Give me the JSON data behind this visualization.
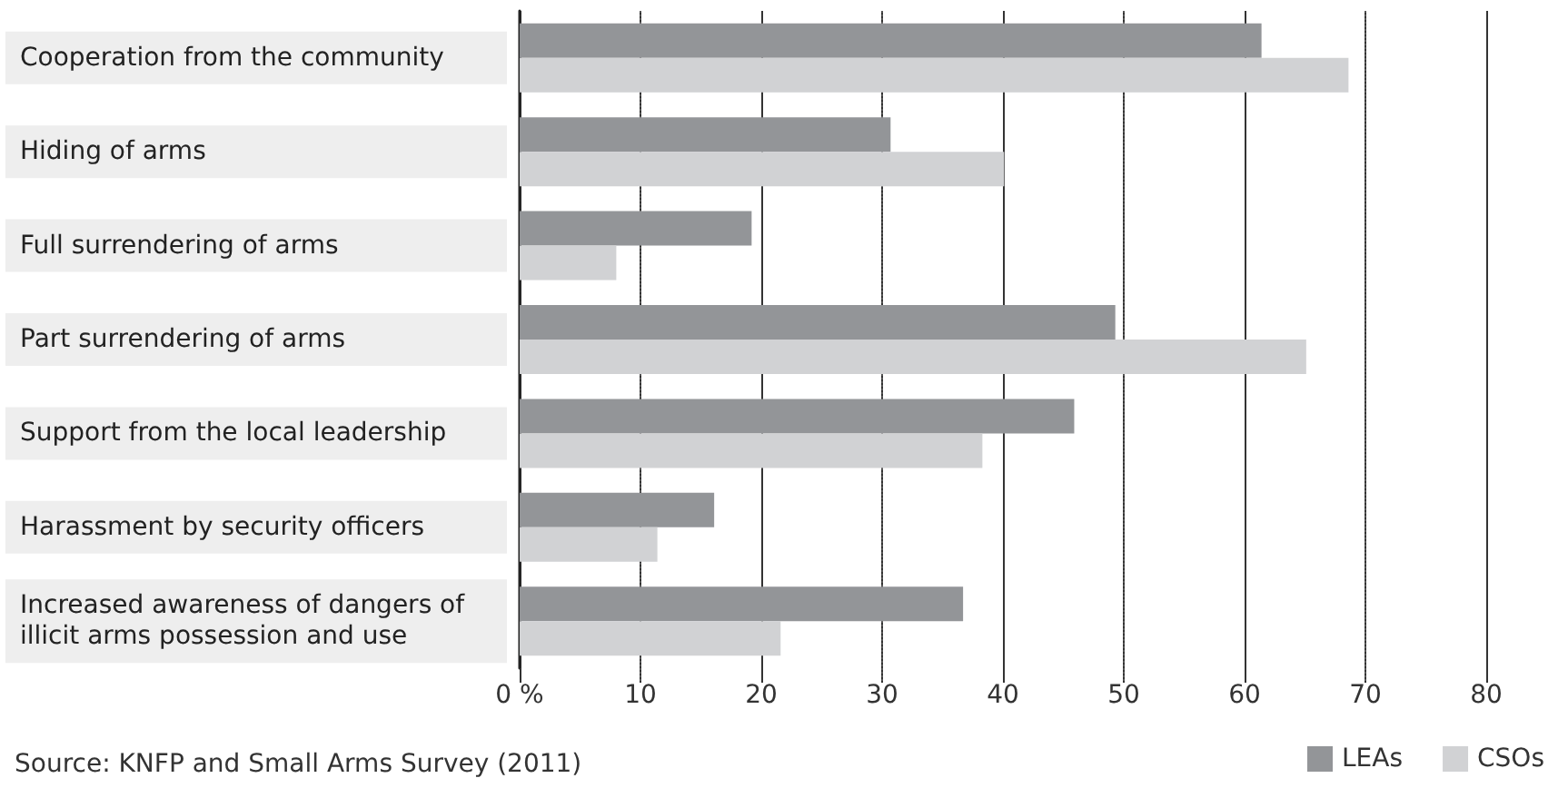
{
  "chart_data": {
    "type": "bar",
    "orientation": "horizontal",
    "categories": [
      "Cooperation from the community",
      "Hiding of arms",
      "Full surrendering of arms",
      "Part surrendering of arms",
      "Support from the local leadership",
      "Harassment by security officers",
      "Increased awareness of dangers of illicit arms possession and use"
    ],
    "series": [
      {
        "name": "LEAs",
        "color": "#939598",
        "values": [
          61.4,
          30.7,
          19.2,
          49.3,
          45.9,
          16.1,
          36.7
        ]
      },
      {
        "name": "CSOs",
        "color": "#d1d2d4",
        "values": [
          68.6,
          40.1,
          8.0,
          65.1,
          38.3,
          11.4,
          21.6
        ]
      }
    ],
    "xlim": [
      0,
      80
    ],
    "xticks": [
      {
        "value": 0,
        "label": "0 %"
      },
      10,
      20,
      30,
      40,
      50,
      60,
      70,
      80
    ],
    "grid": "x",
    "legend": "bottom right",
    "annotations": [
      "Source: KNFP and Small Arms Survey (2011)"
    ]
  }
}
